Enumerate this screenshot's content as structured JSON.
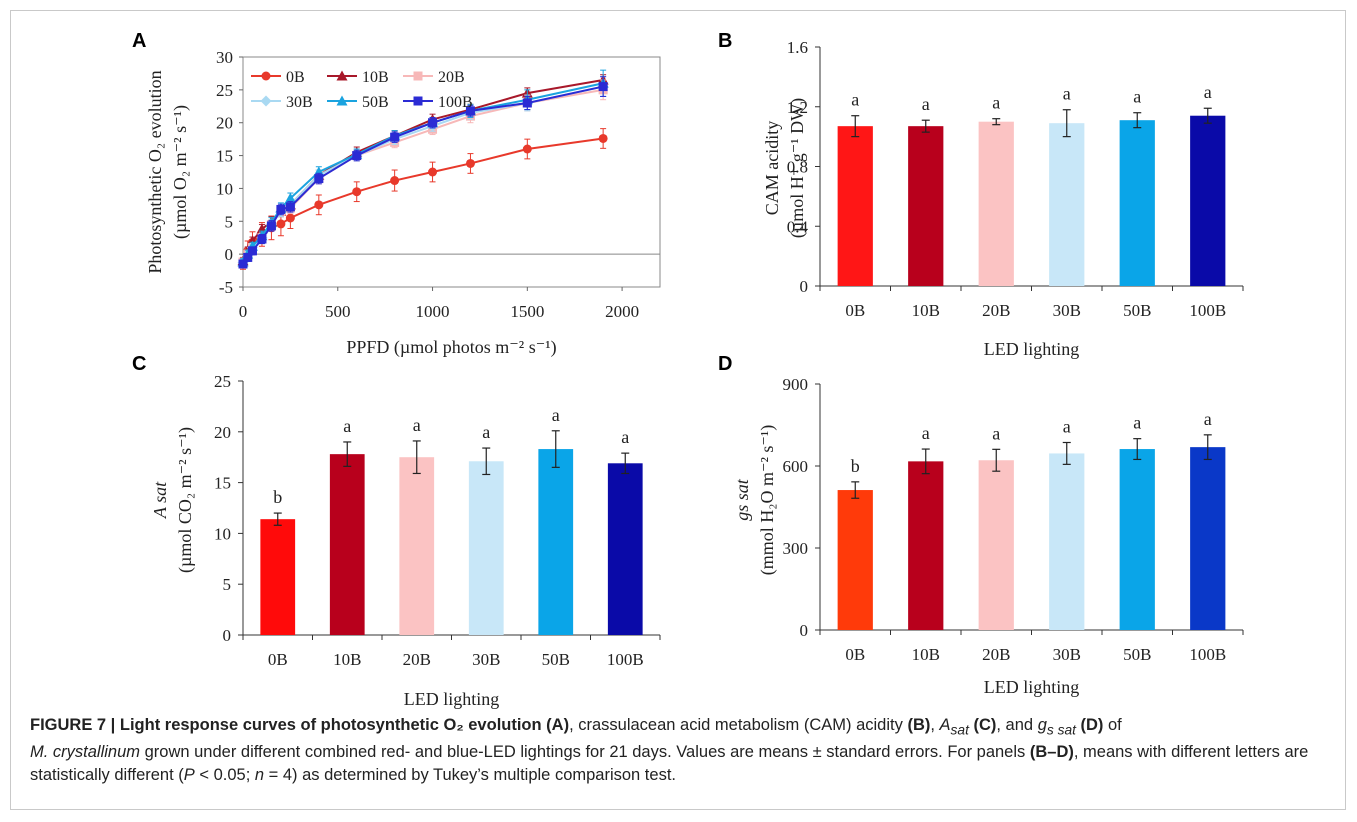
{
  "chart_data": [
    {
      "panel": "A",
      "type": "line",
      "xlabel": "PPFD (µmol photos  m⁻² s⁻¹)",
      "ylabel_lines": [
        "Photosynthetic O₂ evolution",
        "(µmol O₂  m⁻² s⁻¹)"
      ],
      "xlim": [
        0,
        2200
      ],
      "ylim": [
        -5,
        30
      ],
      "xticks": [
        0,
        500,
        1000,
        1500,
        2000
      ],
      "yticks": [
        -5,
        0,
        5,
        10,
        15,
        20,
        25,
        30
      ],
      "legend_position": "top-left",
      "x": [
        0,
        25,
        50,
        100,
        150,
        200,
        250,
        400,
        600,
        800,
        1000,
        1200,
        1500,
        1900
      ],
      "series": [
        {
          "name": "0B",
          "color": "#e8392b",
          "marker": "circle",
          "values": [
            -1.5,
            0.5,
            1.8,
            3.0,
            4.0,
            4.6,
            5.5,
            7.5,
            9.5,
            11.2,
            12.5,
            13.8,
            16.0,
            17.6
          ],
          "errors": [
            0.8,
            1.5,
            1.6,
            1.8,
            1.8,
            1.8,
            1.6,
            1.5,
            1.5,
            1.6,
            1.5,
            1.5,
            1.5,
            1.5
          ]
        },
        {
          "name": "10B",
          "color": "#a8182a",
          "marker": "triangle",
          "values": [
            -1.0,
            0.5,
            2.0,
            3.8,
            5.0,
            6.5,
            7.5,
            12.0,
            15.5,
            18.0,
            20.5,
            22.0,
            24.5,
            26.5
          ],
          "errors": [
            0.5,
            0.6,
            0.6,
            0.7,
            0.7,
            0.8,
            0.8,
            0.8,
            0.8,
            0.8,
            0.8,
            0.8,
            0.8,
            0.8
          ]
        },
        {
          "name": "20B",
          "color": "#f7b8b8",
          "marker": "square",
          "values": [
            -1.2,
            0.0,
            1.0,
            2.5,
            4.5,
            6.5,
            7.0,
            11.5,
            15.0,
            17.0,
            19.0,
            21.0,
            23.0,
            25.0
          ],
          "errors": [
            0.5,
            0.6,
            0.6,
            0.7,
            0.8,
            0.8,
            0.8,
            0.8,
            0.8,
            0.8,
            0.8,
            1.0,
            1.2,
            1.5
          ]
        },
        {
          "name": "30B",
          "color": "#a9d9f2",
          "marker": "diamond",
          "values": [
            -1.3,
            -0.2,
            1.0,
            2.5,
            4.5,
            6.5,
            7.5,
            12.0,
            15.0,
            17.5,
            19.5,
            21.5,
            23.0,
            25.5
          ],
          "errors": [
            0.5,
            0.6,
            0.6,
            0.7,
            0.8,
            0.8,
            0.8,
            0.8,
            0.8,
            0.8,
            0.8,
            1.0,
            1.2,
            1.5
          ]
        },
        {
          "name": "50B",
          "color": "#1aa3df",
          "marker": "triangle",
          "values": [
            -1.2,
            0.0,
            1.2,
            2.8,
            4.8,
            7.0,
            8.5,
            12.5,
            15.2,
            18.0,
            20.0,
            21.8,
            23.5,
            26.0
          ],
          "errors": [
            0.5,
            0.6,
            0.6,
            0.7,
            0.8,
            0.8,
            0.8,
            0.8,
            0.8,
            0.8,
            0.8,
            1.0,
            1.5,
            2.0
          ]
        },
        {
          "name": "100B",
          "color": "#2b2bd4",
          "marker": "square",
          "values": [
            -1.5,
            -0.5,
            0.5,
            2.3,
            4.3,
            6.8,
            7.2,
            11.5,
            15.0,
            17.8,
            20.0,
            21.8,
            23.0,
            25.5
          ],
          "errors": [
            0.5,
            0.6,
            0.6,
            0.7,
            0.8,
            0.8,
            0.8,
            0.8,
            0.8,
            0.8,
            0.8,
            0.8,
            1.0,
            1.5
          ]
        }
      ]
    },
    {
      "panel": "B",
      "type": "bar",
      "xlabel": "LED lighting",
      "ylabel_lines": [
        "CAM acidity",
        "(µmol H⁺  g⁻¹ DW)"
      ],
      "ylim": [
        0,
        1.6
      ],
      "yticks": [
        "0",
        "0.4",
        "0.8",
        "1.2",
        "1.6"
      ],
      "categories": [
        "0B",
        "10B",
        "20B",
        "30B",
        "50B",
        "100B"
      ],
      "values": [
        1.07,
        1.07,
        1.1,
        1.09,
        1.11,
        1.14
      ],
      "errors": [
        0.07,
        0.04,
        0.02,
        0.09,
        0.05,
        0.05
      ],
      "letters": [
        "a",
        "a",
        "a",
        "a",
        "a",
        "a"
      ],
      "colors": [
        "#ff1616",
        "#b8001c",
        "#fbc3c3",
        "#c8e7f8",
        "#0aa5e8",
        "#0a0aa8"
      ]
    },
    {
      "panel": "C",
      "type": "bar",
      "xlabel": "LED lighting",
      "ylabel_lines": [
        "A sat",
        "(µmol CO₂  m⁻² s⁻¹)"
      ],
      "ylim": [
        0,
        25
      ],
      "yticks": [
        "0",
        "5",
        "10",
        "15",
        "20",
        "25"
      ],
      "categories": [
        "0B",
        "10B",
        "20B",
        "30B",
        "50B",
        "100B"
      ],
      "values": [
        11.4,
        17.8,
        17.5,
        17.1,
        18.3,
        16.9
      ],
      "errors": [
        0.6,
        1.2,
        1.6,
        1.3,
        1.8,
        1.0
      ],
      "letters": [
        "b",
        "a",
        "a",
        "a",
        "a",
        "a"
      ],
      "colors": [
        "#ff0a0a",
        "#b8001c",
        "#fbc3c3",
        "#c8e7f8",
        "#0aa5e8",
        "#0a0aa8"
      ]
    },
    {
      "panel": "D",
      "type": "bar",
      "xlabel": "LED lighting",
      "ylabel_lines": [
        "gs sat",
        "(mmol  H₂O m⁻² s⁻¹)"
      ],
      "ylim": [
        0,
        900
      ],
      "yticks": [
        "0",
        "300",
        "600",
        "900"
      ],
      "categories": [
        "0B",
        "10B",
        "20B",
        "30B",
        "50B",
        "100B"
      ],
      "values": [
        512,
        617,
        621,
        646,
        662,
        669
      ],
      "errors": [
        30,
        45,
        40,
        40,
        38,
        45
      ],
      "letters": [
        "b",
        "a",
        "a",
        "a",
        "a",
        "a"
      ],
      "colors": [
        "#ff3a0a",
        "#b8001c",
        "#fbc3c3",
        "#c8e7f8",
        "#0aa5e8",
        "#0a38c8"
      ]
    }
  ],
  "caption": {
    "figure_label": "FIGURE 7 | Light response curves of photosynthetic O₂ evolution (A)",
    "text_1": ", crassulacean acid metabolism (CAM) acidity ",
    "ref_b": "(B)",
    "asat": "A",
    "asat_sub": "sat",
    "ref_c": "(C)",
    "and": ", and ",
    "gs": "g",
    "gs_sub": "s sat",
    "ref_d": "(D)",
    "text_2": " of",
    "species": "M. crystallinum",
    "text_3": " grown under different combined red- and blue-LED lightings for 21 days. Values are means ± standard errors. For panels ",
    "ref_bd": "(B–D)",
    "text_4": ", means with different letters are statistically different (",
    "p": "P",
    "text_5": " < 0.05; ",
    "n": "n",
    "text_6": " = 4) as determined by Tukey’s multiple comparison test."
  }
}
